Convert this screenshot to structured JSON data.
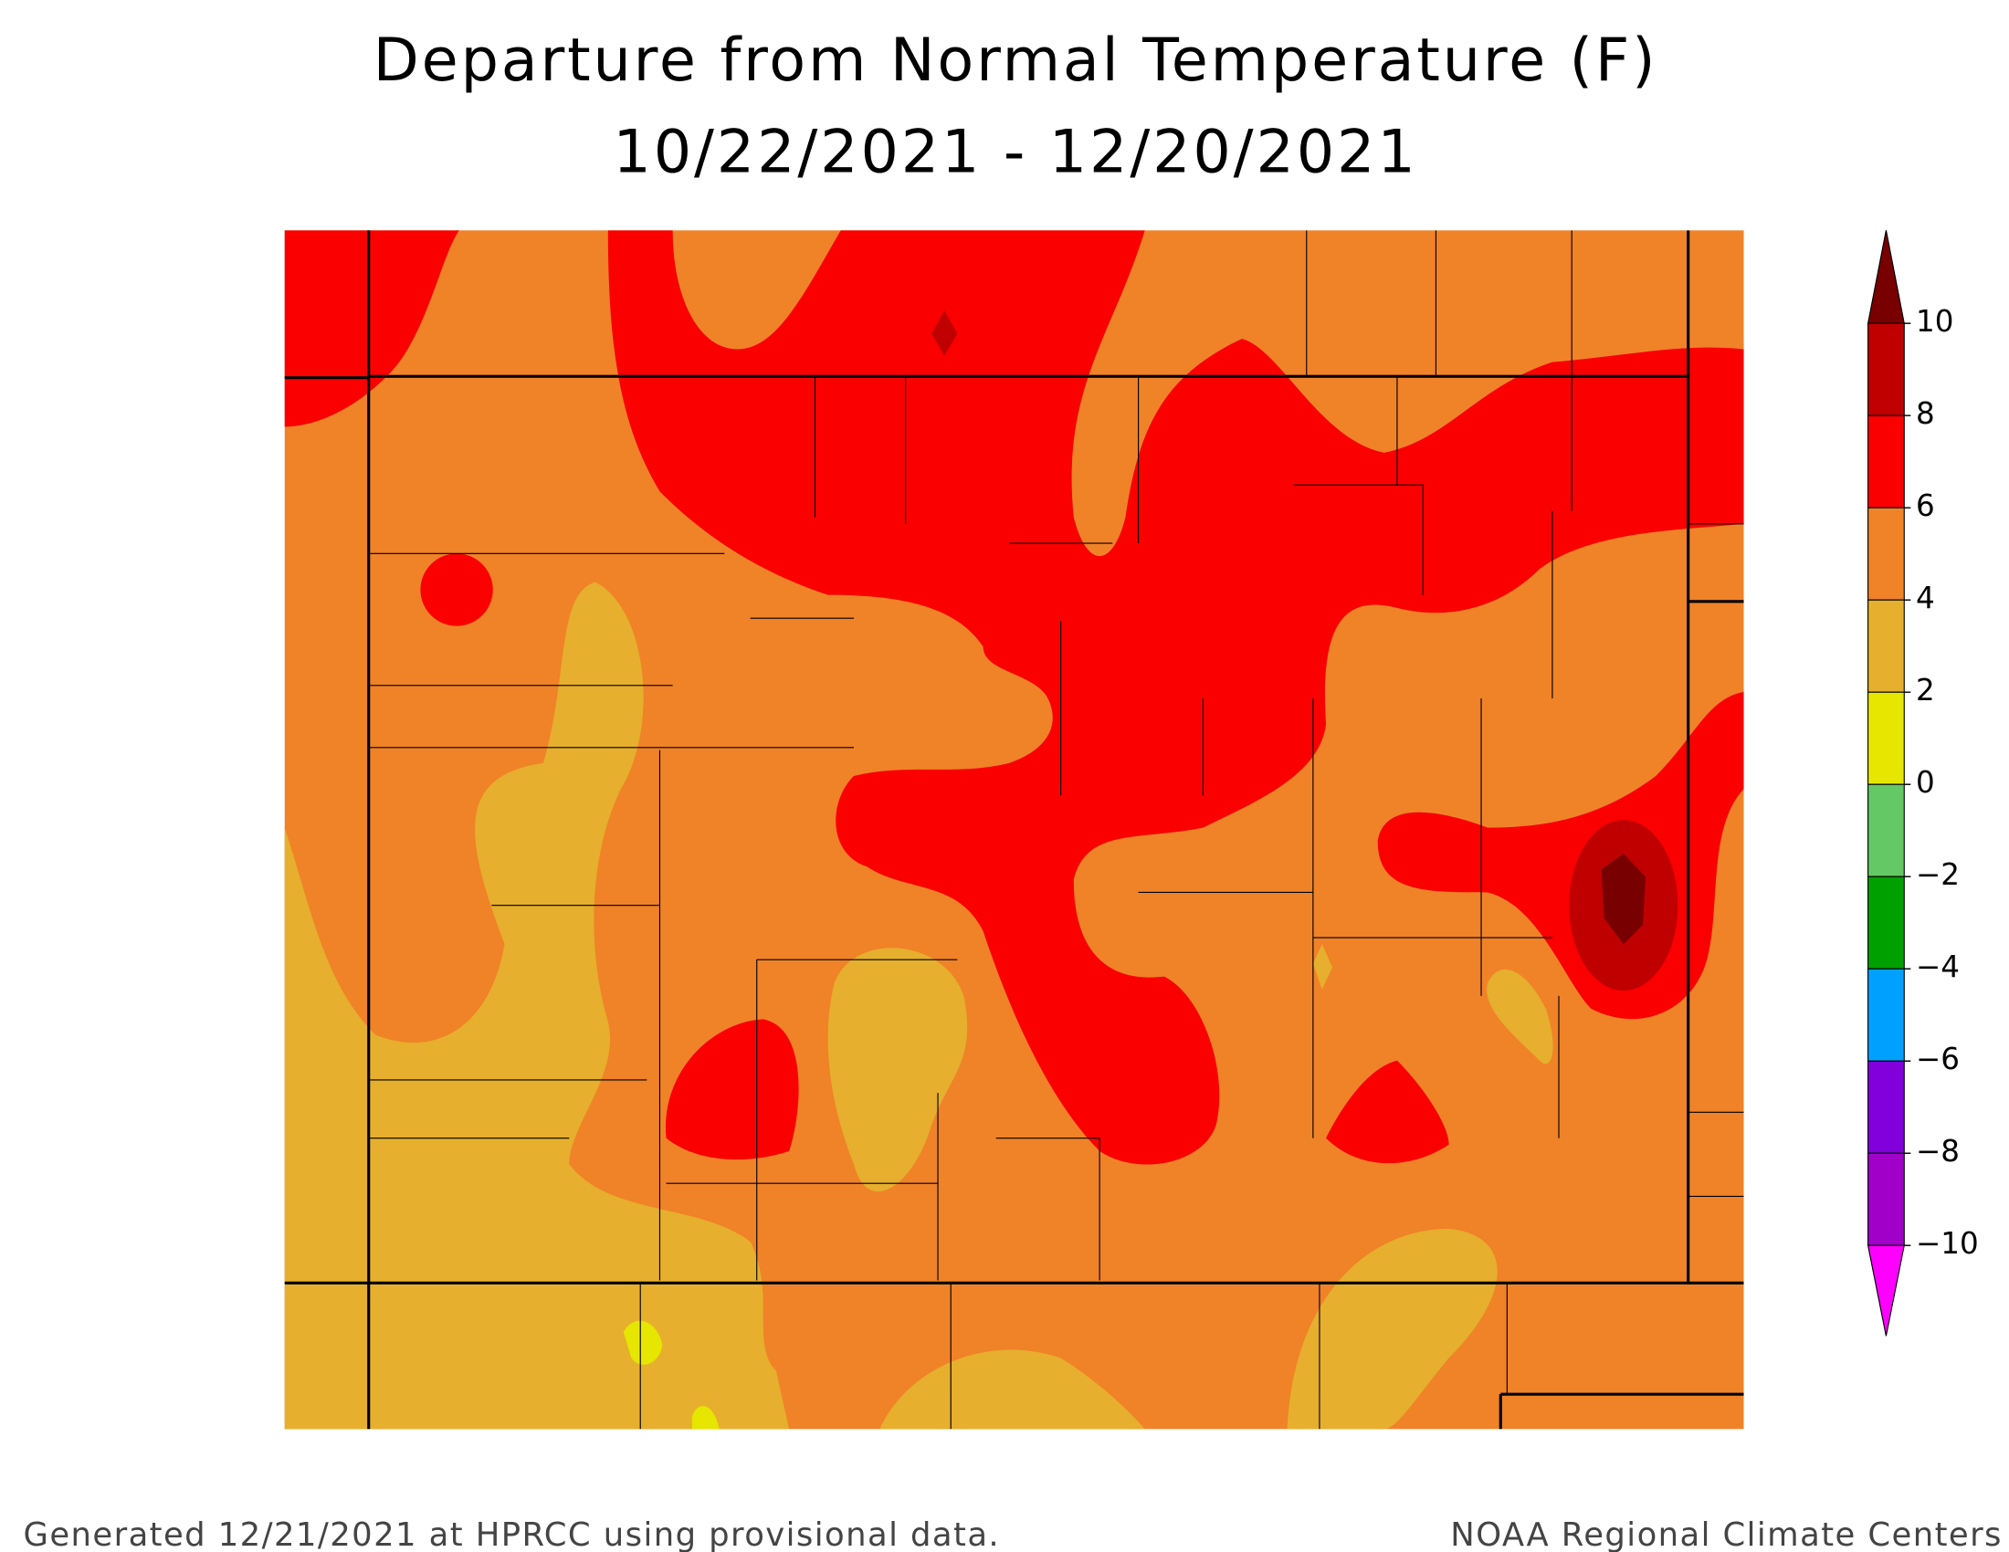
{
  "header": {
    "title": "Departure from Normal Temperature (F)",
    "subtitle": "10/22/2021 - 12/20/2021"
  },
  "legend": {
    "ticks": [
      10,
      8,
      6,
      4,
      2,
      0,
      {
        "value": -2,
        "label": "−2"
      },
      {
        "value": -4,
        "label": "−4"
      },
      {
        "value": -6,
        "label": "−6"
      },
      {
        "value": -8,
        "label": "−8"
      },
      {
        "value": -10,
        "label": "−10"
      }
    ],
    "colors": [
      "#780000",
      "#c00000",
      "#fa0000",
      "#f08228",
      "#e6af2d",
      "#e6e600",
      "#64c864",
      "#00a000",
      "#00a0ff",
      "#8200dc",
      "#a000c8",
      "#ff00ff"
    ]
  },
  "footer": {
    "left": "Generated 12/21/2021 at HPRCC using provisional data.",
    "right": "NOAA Regional Climate Centers"
  }
}
